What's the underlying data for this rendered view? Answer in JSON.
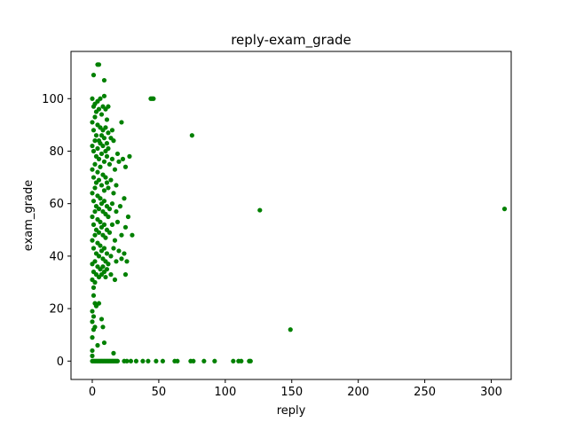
{
  "chart_data": {
    "type": "scatter",
    "title": "reply-exam_grade",
    "xlabel": "reply",
    "ylabel": "exam_grade",
    "xlim": [
      -16,
      315
    ],
    "ylim": [
      -7,
      118
    ],
    "xticks": [
      0,
      50,
      100,
      150,
      200,
      250,
      300
    ],
    "yticks": [
      0,
      20,
      40,
      60,
      80,
      100
    ],
    "grid": false,
    "legend": "none",
    "marker_color": "#008000",
    "series": [
      {
        "points": [
          [
            4,
            113
          ],
          [
            5,
            113
          ],
          [
            1,
            109
          ],
          [
            9,
            107
          ],
          [
            44,
            100
          ],
          [
            45,
            100
          ],
          [
            46,
            100
          ],
          [
            75,
            86
          ],
          [
            126,
            57.5
          ],
          [
            310,
            58
          ],
          [
            149,
            12
          ],
          [
            0,
            100
          ],
          [
            1,
            97
          ],
          [
            2,
            98
          ],
          [
            3,
            95
          ],
          [
            4,
            99
          ],
          [
            5,
            96
          ],
          [
            6,
            100
          ],
          [
            7,
            94
          ],
          [
            8,
            97
          ],
          [
            9,
            101
          ],
          [
            10,
            96
          ],
          [
            11,
            92
          ],
          [
            12,
            97
          ],
          [
            22,
            91
          ],
          [
            0,
            91
          ],
          [
            1,
            88
          ],
          [
            2,
            93
          ],
          [
            3,
            86
          ],
          [
            4,
            90
          ],
          [
            5,
            84
          ],
          [
            6,
            89
          ],
          [
            7,
            86
          ],
          [
            8,
            88
          ],
          [
            9,
            85
          ],
          [
            10,
            89
          ],
          [
            11,
            83
          ],
          [
            12,
            87
          ],
          [
            14,
            85
          ],
          [
            15,
            88
          ],
          [
            16,
            84
          ],
          [
            0,
            82
          ],
          [
            1,
            80
          ],
          [
            2,
            84
          ],
          [
            3,
            78
          ],
          [
            4,
            81
          ],
          [
            5,
            77
          ],
          [
            6,
            83
          ],
          [
            7,
            79
          ],
          [
            8,
            82
          ],
          [
            9,
            76
          ],
          [
            10,
            80
          ],
          [
            11,
            78
          ],
          [
            12,
            81
          ],
          [
            13,
            75
          ],
          [
            15,
            77
          ],
          [
            17,
            73
          ],
          [
            19,
            79
          ],
          [
            20,
            76
          ],
          [
            23,
            77
          ],
          [
            25,
            74
          ],
          [
            28,
            78
          ],
          [
            0,
            73
          ],
          [
            1,
            70
          ],
          [
            2,
            75
          ],
          [
            3,
            68
          ],
          [
            4,
            72
          ],
          [
            5,
            69
          ],
          [
            6,
            74
          ],
          [
            7,
            67
          ],
          [
            8,
            71
          ],
          [
            9,
            65
          ],
          [
            10,
            70
          ],
          [
            11,
            68
          ],
          [
            12,
            66
          ],
          [
            14,
            69
          ],
          [
            16,
            64
          ],
          [
            18,
            67
          ],
          [
            0,
            64
          ],
          [
            1,
            61
          ],
          [
            2,
            66
          ],
          [
            3,
            59
          ],
          [
            4,
            63
          ],
          [
            5,
            58
          ],
          [
            6,
            62
          ],
          [
            7,
            60
          ],
          [
            8,
            57
          ],
          [
            9,
            61
          ],
          [
            10,
            56
          ],
          [
            11,
            59
          ],
          [
            12,
            55
          ],
          [
            13,
            58
          ],
          [
            15,
            60
          ],
          [
            18,
            57
          ],
          [
            21,
            59
          ],
          [
            24,
            62
          ],
          [
            27,
            55
          ],
          [
            0,
            55
          ],
          [
            1,
            52
          ],
          [
            2,
            57
          ],
          [
            3,
            50
          ],
          [
            4,
            54
          ],
          [
            5,
            49
          ],
          [
            6,
            53
          ],
          [
            7,
            51
          ],
          [
            8,
            48
          ],
          [
            9,
            52
          ],
          [
            10,
            47
          ],
          [
            11,
            50
          ],
          [
            13,
            49
          ],
          [
            15,
            52
          ],
          [
            17,
            46
          ],
          [
            19,
            53
          ],
          [
            22,
            48
          ],
          [
            25,
            51
          ],
          [
            30,
            48
          ],
          [
            0,
            46
          ],
          [
            1,
            43
          ],
          [
            2,
            48
          ],
          [
            3,
            41
          ],
          [
            4,
            45
          ],
          [
            5,
            40
          ],
          [
            6,
            44
          ],
          [
            7,
            42
          ],
          [
            8,
            39
          ],
          [
            9,
            43
          ],
          [
            10,
            38
          ],
          [
            11,
            41
          ],
          [
            12,
            37
          ],
          [
            14,
            40
          ],
          [
            16,
            43
          ],
          [
            18,
            38
          ],
          [
            20,
            42
          ],
          [
            22,
            39
          ],
          [
            24,
            41
          ],
          [
            26,
            38
          ],
          [
            0,
            37
          ],
          [
            1,
            34
          ],
          [
            2,
            38
          ],
          [
            3,
            33
          ],
          [
            4,
            36
          ],
          [
            5,
            32
          ],
          [
            6,
            35
          ],
          [
            7,
            33
          ],
          [
            8,
            36
          ],
          [
            9,
            34
          ],
          [
            10,
            32
          ],
          [
            11,
            35
          ],
          [
            14,
            33
          ],
          [
            17,
            31
          ],
          [
            25,
            33
          ],
          [
            0,
            31
          ],
          [
            1,
            28
          ],
          [
            2,
            30
          ],
          [
            1,
            25
          ],
          [
            2,
            22
          ],
          [
            0,
            19
          ],
          [
            1,
            17
          ],
          [
            3,
            21
          ],
          [
            0,
            15
          ],
          [
            5,
            22
          ],
          [
            7,
            16
          ],
          [
            0,
            9
          ],
          [
            1,
            12
          ],
          [
            2,
            13
          ],
          [
            0,
            4
          ],
          [
            4,
            6
          ],
          [
            8,
            13
          ],
          [
            9,
            7
          ],
          [
            0,
            2
          ],
          [
            16,
            3
          ],
          [
            0,
            0
          ],
          [
            1,
            0
          ],
          [
            2,
            0
          ],
          [
            3,
            0
          ],
          [
            4,
            0
          ],
          [
            5,
            0
          ],
          [
            6,
            0
          ],
          [
            7,
            0
          ],
          [
            8,
            0
          ],
          [
            9,
            0
          ],
          [
            10,
            0
          ],
          [
            11,
            0
          ],
          [
            12,
            0
          ],
          [
            13,
            0
          ],
          [
            14,
            0
          ],
          [
            15,
            0
          ],
          [
            16,
            0
          ],
          [
            17,
            0
          ],
          [
            18,
            0
          ],
          [
            19,
            0
          ],
          [
            24,
            0
          ],
          [
            26,
            0
          ],
          [
            29,
            0
          ],
          [
            33,
            0
          ],
          [
            38,
            0
          ],
          [
            42,
            0
          ],
          [
            48,
            0
          ],
          [
            53,
            0
          ],
          [
            62,
            0
          ],
          [
            64,
            0
          ],
          [
            74,
            0
          ],
          [
            76,
            0
          ],
          [
            84,
            0
          ],
          [
            92,
            0
          ],
          [
            106,
            0
          ],
          [
            110,
            0
          ],
          [
            112,
            0
          ],
          [
            118,
            0
          ],
          [
            119,
            0
          ]
        ]
      }
    ]
  }
}
